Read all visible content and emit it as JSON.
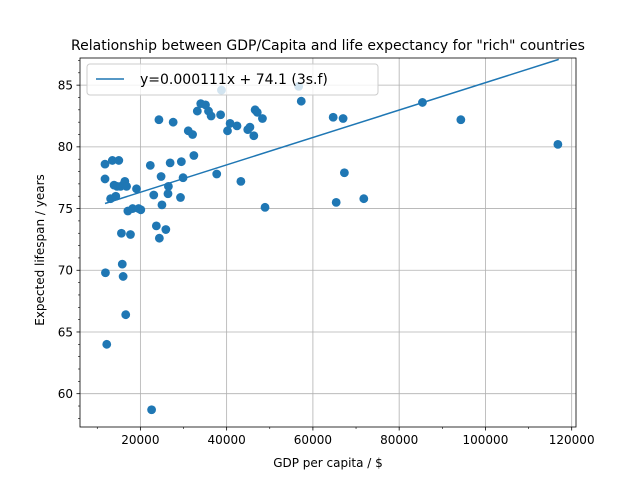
{
  "chart_data": {
    "type": "scatter",
    "title": "Relationship between GDP/Capita and life expectancy for \"rich\" countries",
    "xlabel": "GDP per capita / $",
    "ylabel": "Expected lifespan / years",
    "xlim": [
      6000,
      121000
    ],
    "ylim": [
      57.3,
      87.2
    ],
    "xticks": [
      20000,
      40000,
      60000,
      80000,
      100000,
      120000
    ],
    "xtick_labels": [
      "20000",
      "40000",
      "60000",
      "80000",
      "100000",
      "120000"
    ],
    "yticks": [
      60,
      65,
      70,
      75,
      80,
      85
    ],
    "ytick_labels": [
      "60",
      "65",
      "70",
      "75",
      "80",
      "85"
    ],
    "grid": true,
    "legend_position": "upper-left",
    "colors": {
      "series": "#1f77b4"
    },
    "trend": {
      "label": "y=0.000111x + 74.1 (3s.f)",
      "slope": 0.000111,
      "intercept": 74.1,
      "x_start": 11800,
      "x_end": 117000
    },
    "points": [
      [
        11800,
        78.6
      ],
      [
        11800,
        77.4
      ],
      [
        11900,
        69.8
      ],
      [
        12200,
        64.0
      ],
      [
        13100,
        75.8
      ],
      [
        13500,
        78.9
      ],
      [
        13900,
        76.9
      ],
      [
        14300,
        76.0
      ],
      [
        14600,
        76.8
      ],
      [
        15000,
        78.9
      ],
      [
        15400,
        76.8
      ],
      [
        15600,
        73.0
      ],
      [
        15800,
        70.5
      ],
      [
        16000,
        69.5
      ],
      [
        16200,
        77.0
      ],
      [
        16400,
        77.2
      ],
      [
        16600,
        66.4
      ],
      [
        16800,
        76.8
      ],
      [
        17100,
        74.8
      ],
      [
        17700,
        72.9
      ],
      [
        18200,
        75.0
      ],
      [
        19100,
        76.6
      ],
      [
        19600,
        75.0
      ],
      [
        20100,
        74.9
      ],
      [
        22300,
        78.5
      ],
      [
        22600,
        58.7
      ],
      [
        23100,
        76.1
      ],
      [
        23700,
        73.6
      ],
      [
        24300,
        82.2
      ],
      [
        24400,
        72.6
      ],
      [
        24800,
        77.6
      ],
      [
        25000,
        75.3
      ],
      [
        25900,
        73.3
      ],
      [
        26400,
        76.2
      ],
      [
        26500,
        76.8
      ],
      [
        26900,
        78.7
      ],
      [
        27600,
        82.0
      ],
      [
        29300,
        75.9
      ],
      [
        29500,
        78.8
      ],
      [
        29900,
        77.5
      ],
      [
        31100,
        81.3
      ],
      [
        32100,
        81.0
      ],
      [
        32400,
        79.3
      ],
      [
        33200,
        82.9
      ],
      [
        34000,
        83.5
      ],
      [
        35100,
        83.4
      ],
      [
        35800,
        82.9
      ],
      [
        36400,
        82.5
      ],
      [
        37700,
        77.8
      ],
      [
        38600,
        82.6
      ],
      [
        38800,
        84.6
      ],
      [
        40200,
        81.3
      ],
      [
        40800,
        81.9
      ],
      [
        42400,
        81.7
      ],
      [
        43300,
        77.2
      ],
      [
        44900,
        81.4
      ],
      [
        45400,
        81.6
      ],
      [
        46300,
        80.9
      ],
      [
        46600,
        83.0
      ],
      [
        47100,
        82.8
      ],
      [
        48300,
        82.3
      ],
      [
        48900,
        75.1
      ],
      [
        56700,
        84.9
      ],
      [
        57300,
        83.7
      ],
      [
        64700,
        82.4
      ],
      [
        65400,
        75.5
      ],
      [
        67000,
        82.3
      ],
      [
        67300,
        77.9
      ],
      [
        71800,
        75.8
      ],
      [
        85400,
        83.6
      ],
      [
        94300,
        82.2
      ],
      [
        116800,
        80.2
      ]
    ]
  }
}
